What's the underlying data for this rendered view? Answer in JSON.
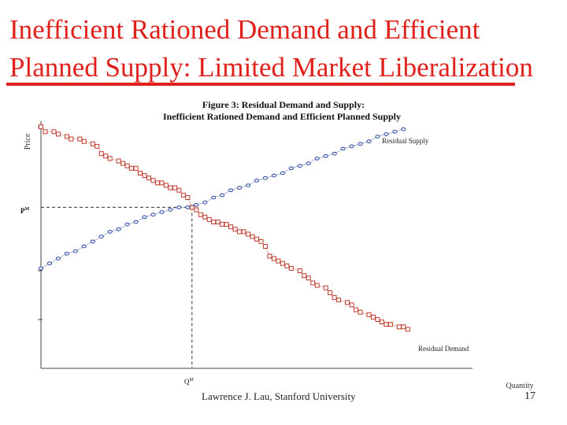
{
  "slide": {
    "title_line1": "Inefficient Rationed Demand and Efficient",
    "title_line2": "Planned Supply: Limited Market Liberalization",
    "footer_author": "Lawrence J. Lau, Stanford University",
    "page_number": "17",
    "accent_color": "#e0201b",
    "series_color_demand": "#c0392b",
    "series_color_supply": "#1f3f9f"
  },
  "chart_data": {
    "type": "line",
    "title_line1": "Figure 3: Residual Demand and Supply:",
    "title_line2": "Inefficient Rationed Demand and Efficient Planned Supply",
    "xlabel": "Quantity",
    "ylabel": "Price",
    "xlim": [
      0,
      100
    ],
    "ylim": [
      0,
      100
    ],
    "grid": false,
    "equilibrium": {
      "x": 35,
      "y": 66,
      "price_label": "P",
      "quantity_label": "Q",
      "superscript": "M"
    },
    "series": [
      {
        "name": "Residual Demand",
        "marker": "square",
        "points": [
          [
            0,
            99
          ],
          [
            1,
            97
          ],
          [
            3,
            97
          ],
          [
            4,
            96
          ],
          [
            6,
            95
          ],
          [
            7,
            94
          ],
          [
            9,
            94
          ],
          [
            10,
            93
          ],
          [
            12,
            92
          ],
          [
            13,
            91
          ],
          [
            14,
            88
          ],
          [
            15,
            87
          ],
          [
            16,
            86
          ],
          [
            18,
            85
          ],
          [
            19,
            84
          ],
          [
            20,
            83
          ],
          [
            21,
            82
          ],
          [
            22,
            82
          ],
          [
            23,
            80
          ],
          [
            24,
            79
          ],
          [
            25,
            78
          ],
          [
            26,
            77
          ],
          [
            27,
            76
          ],
          [
            28,
            76
          ],
          [
            29,
            75
          ],
          [
            30,
            74
          ],
          [
            31,
            74
          ],
          [
            32,
            73
          ],
          [
            33,
            71
          ],
          [
            34,
            70
          ],
          [
            35,
            66
          ],
          [
            36,
            65
          ],
          [
            37,
            63
          ],
          [
            38,
            62
          ],
          [
            39,
            61
          ],
          [
            40,
            60
          ],
          [
            41,
            60
          ],
          [
            42,
            59
          ],
          [
            43,
            59
          ],
          [
            44,
            58
          ],
          [
            45,
            57
          ],
          [
            46,
            56
          ],
          [
            47,
            56
          ],
          [
            48,
            55
          ],
          [
            49,
            54
          ],
          [
            50,
            53
          ],
          [
            51,
            52
          ],
          [
            52,
            50
          ],
          [
            53,
            46
          ],
          [
            54,
            45
          ],
          [
            55,
            44
          ],
          [
            56,
            43
          ],
          [
            57,
            42
          ],
          [
            58,
            41
          ],
          [
            60,
            40
          ],
          [
            61,
            38
          ],
          [
            62,
            37
          ],
          [
            63,
            35
          ],
          [
            64,
            34
          ],
          [
            66,
            33
          ],
          [
            67,
            31
          ],
          [
            68,
            29
          ],
          [
            69,
            28
          ],
          [
            71,
            27
          ],
          [
            72,
            26
          ],
          [
            73,
            24
          ],
          [
            74,
            23
          ],
          [
            76,
            22
          ],
          [
            77,
            21
          ],
          [
            78,
            20
          ],
          [
            79,
            19
          ],
          [
            80,
            18
          ],
          [
            81,
            18
          ],
          [
            83,
            17
          ],
          [
            84,
            17
          ],
          [
            85,
            16
          ]
        ]
      },
      {
        "name": "Residual Supply",
        "marker": "circle",
        "points": [
          [
            0,
            41
          ],
          [
            2,
            43
          ],
          [
            4,
            45
          ],
          [
            6,
            47
          ],
          [
            8,
            48
          ],
          [
            10,
            50
          ],
          [
            12,
            52
          ],
          [
            14,
            54
          ],
          [
            16,
            56
          ],
          [
            18,
            57
          ],
          [
            20,
            59
          ],
          [
            22,
            60
          ],
          [
            24,
            62
          ],
          [
            26,
            63
          ],
          [
            28,
            64
          ],
          [
            30,
            65
          ],
          [
            32,
            66
          ],
          [
            34,
            66
          ],
          [
            36,
            67
          ],
          [
            38,
            68
          ],
          [
            40,
            70
          ],
          [
            42,
            71
          ],
          [
            44,
            73
          ],
          [
            46,
            74
          ],
          [
            48,
            75
          ],
          [
            50,
            77
          ],
          [
            52,
            78
          ],
          [
            54,
            79
          ],
          [
            56,
            80
          ],
          [
            58,
            82
          ],
          [
            60,
            83
          ],
          [
            62,
            84
          ],
          [
            64,
            86
          ],
          [
            66,
            87
          ],
          [
            68,
            88
          ],
          [
            70,
            90
          ],
          [
            72,
            91
          ],
          [
            74,
            92
          ],
          [
            76,
            93
          ],
          [
            78,
            95
          ],
          [
            80,
            96
          ],
          [
            82,
            97
          ],
          [
            84,
            98
          ]
        ]
      }
    ]
  }
}
